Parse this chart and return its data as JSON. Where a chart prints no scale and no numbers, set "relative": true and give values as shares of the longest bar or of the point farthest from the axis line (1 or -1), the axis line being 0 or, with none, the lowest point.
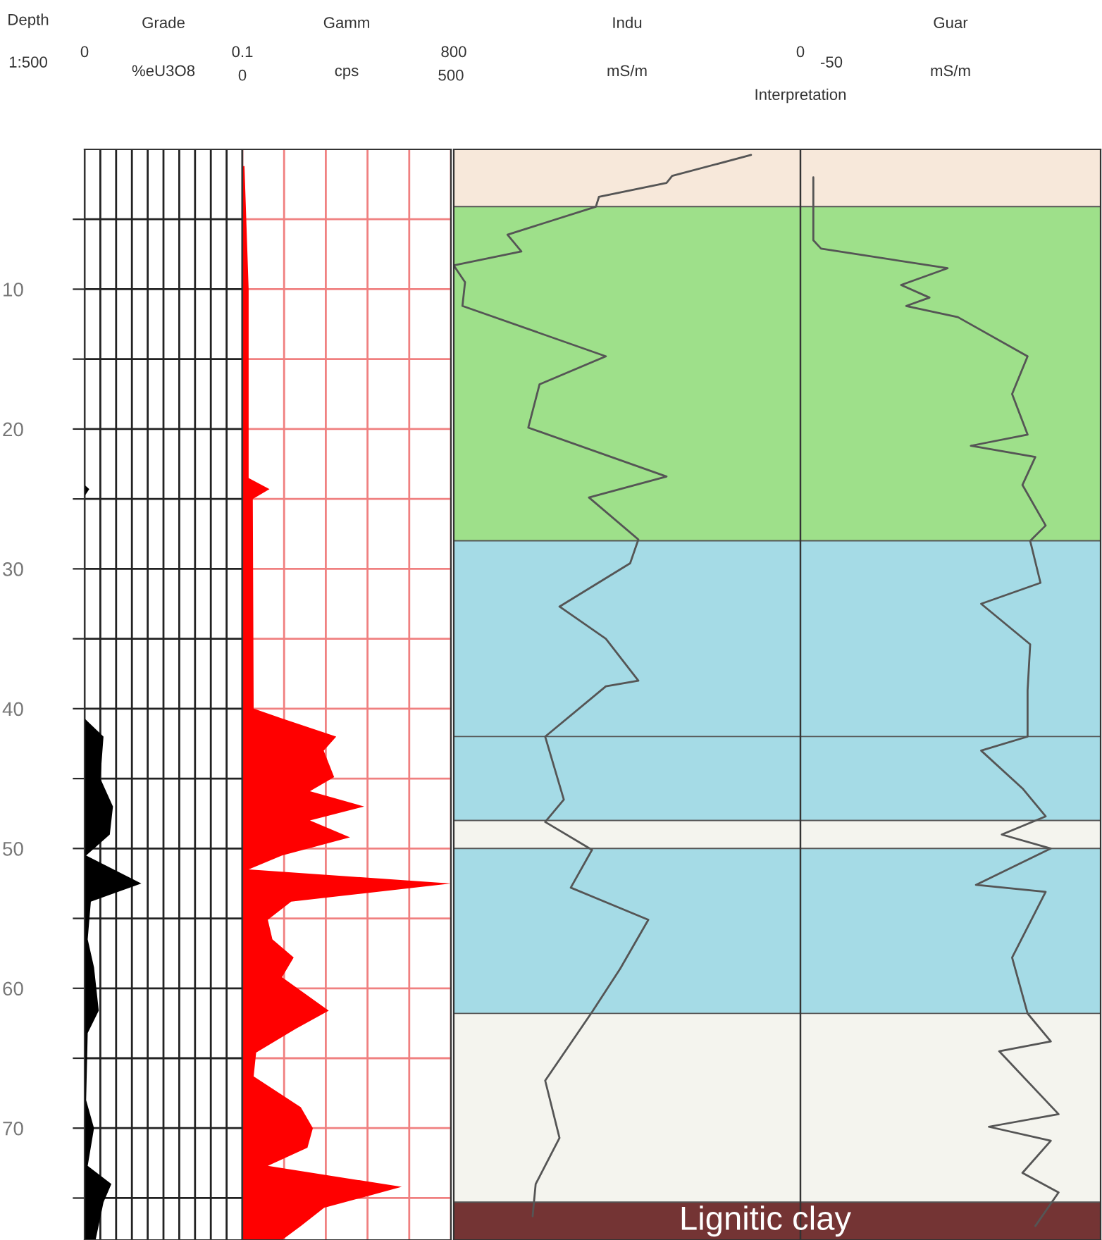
{
  "chart_data": [
    {
      "type": "area",
      "orientation": "horizontal",
      "title": "Grade",
      "xlabel": "%eU3O8",
      "ylabel": "Depth",
      "annotations": [
        "1:500"
      ],
      "x": [
        0,
        24,
        24.3,
        24.8,
        40.7,
        42,
        45,
        47,
        49,
        50.5,
        52.5,
        53.8,
        56.5,
        58.5,
        61.6,
        63.2,
        68,
        70,
        72.7,
        74,
        75.3,
        78
      ],
      "series": [
        {
          "color": "#000000",
          "values": [
            0,
            0,
            0.003,
            0,
            0,
            0.012,
            0.01,
            0.018,
            0.016,
            0.001,
            0.036,
            0.004,
            0.002,
            0.006,
            0.009,
            0.002,
            0.001,
            0.006,
            0.002,
            0.017,
            0.012,
            0.007
          ]
        }
      ],
      "xlim": [
        0,
        0.1
      ],
      "xticks": [
        0,
        {
          "value": 0.01,
          "label": null
        },
        {
          "value": 0.02,
          "label": null
        },
        {
          "value": 0.03,
          "label": null
        },
        {
          "value": 0.04,
          "label": null
        },
        {
          "value": 0.05,
          "label": null
        },
        {
          "value": 0.06,
          "label": null
        },
        {
          "value": 0.07,
          "label": null
        },
        {
          "value": 0.08,
          "label": null
        },
        {
          "value": 0.09,
          "label": null
        },
        0.1
      ],
      "ylim": [
        78,
        0
      ],
      "yticks": [
        {
          "value": 5,
          "label": null
        },
        10,
        {
          "value": 15,
          "label": null
        },
        20,
        {
          "value": 25,
          "label": null
        },
        30,
        {
          "value": 35,
          "label": null
        },
        40,
        {
          "value": 45,
          "label": null
        },
        50,
        {
          "value": 55,
          "label": null
        },
        60,
        {
          "value": 65,
          "label": null
        },
        70,
        {
          "value": 75,
          "label": null
        }
      ],
      "grid": true
    },
    {
      "type": "area",
      "orientation": "horizontal",
      "title": "Gamm",
      "xlabel": "cps",
      "x": [
        1.2,
        10,
        23.5,
        24.3,
        25,
        40,
        40.7,
        42,
        43,
        44.9,
        45.9,
        47,
        48,
        49.2,
        50.5,
        51.5,
        52.5,
        53.8,
        55.1,
        56.5,
        57.8,
        59.2,
        61.6,
        62.9,
        64.6,
        66.3,
        68.5,
        70,
        71.4,
        72.7,
        74.2,
        75.7,
        77,
        78
      ],
      "series": [
        {
          "color": "#ff0000",
          "values": [
            5,
            15,
            15,
            65,
            25,
            27,
            95,
            225,
            195,
            220,
            162,
            292,
            162,
            258,
            95,
            15,
            500,
            117,
            61,
            72,
            123,
            95,
            207,
            128,
            33,
            27,
            140,
            169,
            156,
            61,
            382,
            196,
            140,
            95
          ]
        }
      ],
      "xlim": [
        0,
        500
      ],
      "xticks": [
        0,
        {
          "value": 100,
          "label": null
        },
        {
          "value": 200,
          "label": null
        },
        {
          "value": 300,
          "label": null
        },
        {
          "value": 400,
          "label": null
        },
        500
      ],
      "ylim": [
        78,
        0
      ],
      "yticks": [
        {
          "value": 5,
          "label": null
        },
        {
          "value": 10,
          "label": null
        },
        {
          "value": 15,
          "label": null
        },
        {
          "value": 20,
          "label": null
        },
        {
          "value": 25,
          "label": null
        },
        {
          "value": 30,
          "label": null
        },
        {
          "value": 35,
          "label": null
        },
        {
          "value": 40,
          "label": null
        },
        {
          "value": 45,
          "label": null
        },
        {
          "value": 50,
          "label": null
        },
        {
          "value": 55,
          "label": null
        },
        {
          "value": 60,
          "label": null
        },
        {
          "value": 65,
          "label": null
        },
        {
          "value": 70,
          "label": null
        },
        {
          "value": 75,
          "label": null
        }
      ],
      "grid": true,
      "tick_labels": "x"
    },
    {
      "type": "line",
      "orientation": "horizontal",
      "title": "Indu",
      "xlabel": "mS/m",
      "x": [
        0.4,
        1.9,
        2.4,
        3.4,
        4.1,
        6.1,
        7.3,
        8.3,
        9.5,
        11.2,
        14.8,
        16.8,
        19.9,
        23.4,
        24.9,
        27.9,
        29.6,
        32.7,
        35,
        38,
        38.4,
        42,
        46.5,
        48.1,
        50.1,
        52.8,
        55.1,
        58.6,
        61.7,
        66.6,
        70.7,
        74,
        76.3
      ],
      "series": [
        {
          "color": "#555555",
          "values": [
            114,
            296,
            309,
            465,
            472,
            676,
            644,
            800,
            774,
            780,
            449,
            602,
            628,
            309,
            488,
            374,
            393,
            556,
            449,
            374,
            449,
            589,
            546,
            589,
            481,
            530,
            351,
            416,
            481,
            589,
            556,
            611,
            618
          ]
        }
      ],
      "xlim": [
        800,
        0
      ],
      "xticks": [
        800,
        0
      ],
      "ylim": [
        78,
        0
      ],
      "bands": [
        {
          "axis": "y",
          "from": 0,
          "to": 4.1,
          "color": "#f7e8da"
        },
        {
          "axis": "y",
          "from": 4.1,
          "to": 28,
          "color": "#9ee08a"
        },
        {
          "axis": "y",
          "from": 28,
          "to": 42,
          "color": "#a5dbe6"
        },
        {
          "axis": "y",
          "from": 42,
          "to": 48,
          "color": "#a5dbe6"
        },
        {
          "axis": "y",
          "from": 48,
          "to": 50,
          "color": "#f4f4ee"
        },
        {
          "axis": "y",
          "from": 50,
          "to": 61.8,
          "color": "#a5dbe6"
        },
        {
          "axis": "y",
          "from": 61.8,
          "to": 75.3,
          "color": "#f4f4ee"
        },
        {
          "axis": "y",
          "from": 75.3,
          "to": 78,
          "color": "#743434",
          "label": "Lignitic clay"
        }
      ],
      "tick_labels": "x",
      "marker": "none"
    },
    {
      "type": "line",
      "orientation": "horizontal",
      "title": "Guar",
      "xlabel": "mS/m",
      "relative": true,
      "annotations": [
        "-50",
        "Interpretation"
      ],
      "x": [
        2,
        6.5,
        7.1,
        8.5,
        9.7,
        10.6,
        11.2,
        12,
        14.8,
        17.5,
        20.4,
        21.2,
        22,
        24,
        26.9,
        28,
        31,
        32.5,
        35.4,
        38.7,
        42,
        43,
        45.7,
        47.7,
        49,
        50,
        52.6,
        53.1,
        57.8,
        61.8,
        63.8,
        64.5,
        69,
        69.9,
        70.9,
        73.2,
        74.6,
        77
      ],
      "series": [
        {
          "color": "#555555",
          "values": [
            0.05,
            0.05,
            0.08,
            0.57,
            0.39,
            0.5,
            0.41,
            0.61,
            0.88,
            0.82,
            0.88,
            0.66,
            0.91,
            0.86,
            0.95,
            0.89,
            0.93,
            0.7,
            0.89,
            0.88,
            0.88,
            0.7,
            0.86,
            0.95,
            0.78,
            0.97,
            0.68,
            0.95,
            0.82,
            0.88,
            0.97,
            0.77,
            1,
            0.73,
            0.97,
            0.86,
            1,
            0.91
          ]
        }
      ],
      "ylim": [
        78,
        0
      ],
      "tick_labels": false,
      "marker": "none"
    }
  ]
}
